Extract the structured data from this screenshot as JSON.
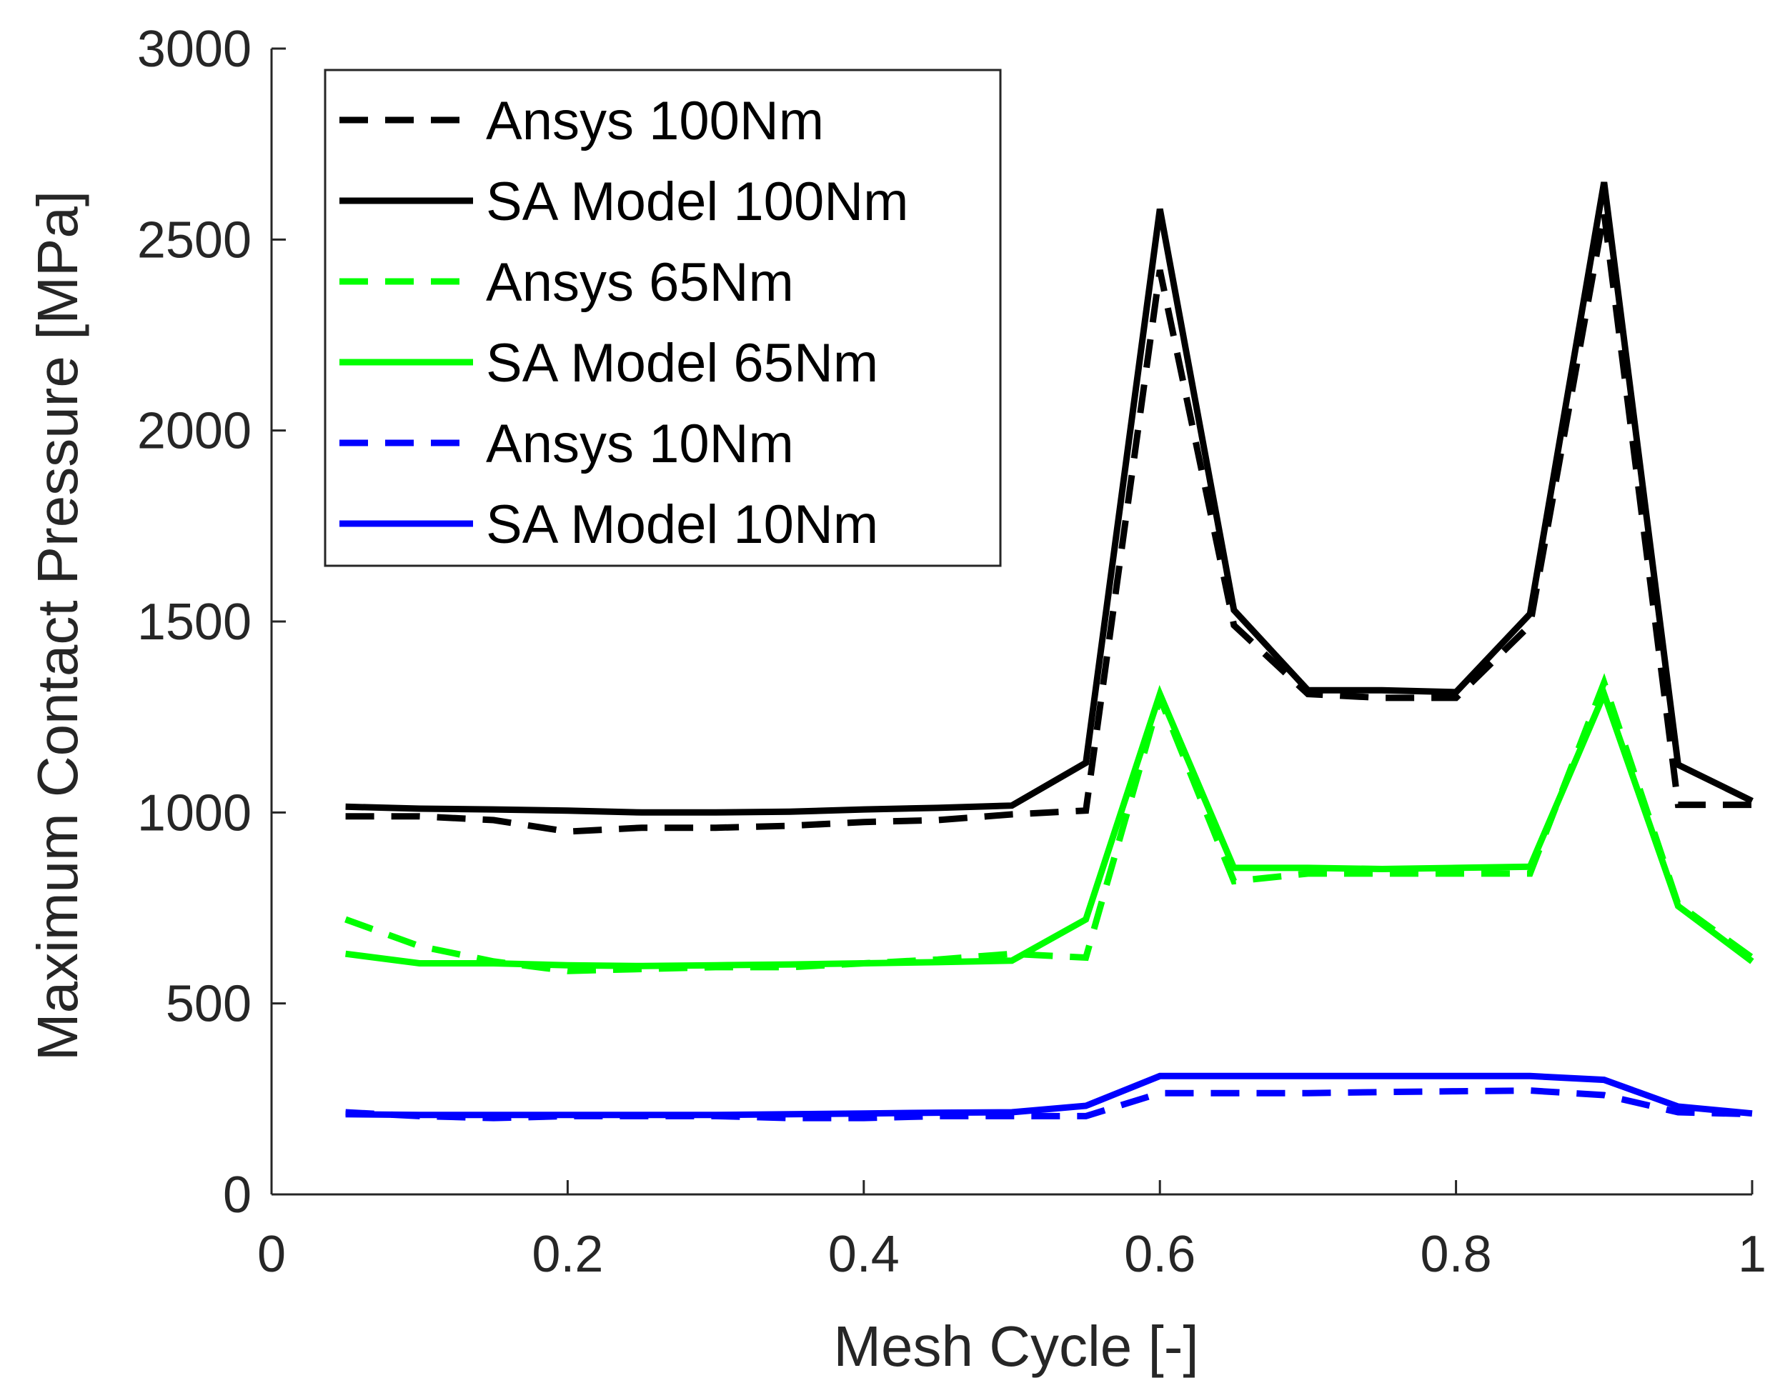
{
  "chart_data": {
    "type": "line",
    "title": "",
    "xlabel": "Mesh Cycle [-]",
    "ylabel": "Maximum Contact Pressure [MPa]",
    "xlim": [
      0,
      1
    ],
    "ylim": [
      0,
      3000
    ],
    "xticks": [
      0,
      0.2,
      0.4,
      0.6,
      0.8,
      1
    ],
    "xtick_labels": [
      "0",
      "0.2",
      "0.4",
      "0.6",
      "0.8",
      "1"
    ],
    "yticks": [
      0,
      500,
      1000,
      1500,
      2000,
      2500,
      3000
    ],
    "ytick_labels": [
      "0",
      "500",
      "1000",
      "1500",
      "2000",
      "2500",
      "3000"
    ],
    "grid": false,
    "legend_position": "top-left",
    "series": [
      {
        "name": "Ansys 100Nm",
        "color": "#000000",
        "style": "dashed",
        "x": [
          0.05,
          0.1,
          0.15,
          0.2,
          0.25,
          0.3,
          0.35,
          0.4,
          0.45,
          0.5,
          0.55,
          0.6,
          0.65,
          0.7,
          0.75,
          0.8,
          0.85,
          0.9,
          0.95,
          1.0
        ],
        "y": [
          990,
          990,
          980,
          950,
          960,
          960,
          965,
          975,
          980,
          995,
          1005,
          2420,
          1490,
          1310,
          1300,
          1300,
          1490,
          2570,
          1020,
          1020
        ]
      },
      {
        "name": "SA Model 100Nm",
        "color": "#000000",
        "style": "solid",
        "x": [
          0.05,
          0.1,
          0.15,
          0.2,
          0.25,
          0.3,
          0.35,
          0.4,
          0.45,
          0.5,
          0.55,
          0.6,
          0.65,
          0.7,
          0.75,
          0.8,
          0.85,
          0.9,
          0.95,
          1.0
        ],
        "y": [
          1015,
          1010,
          1008,
          1005,
          1000,
          1000,
          1002,
          1008,
          1012,
          1018,
          1130,
          2580,
          1530,
          1320,
          1320,
          1315,
          1520,
          2650,
          1125,
          1030
        ]
      },
      {
        "name": "Ansys 65Nm",
        "color": "#00ff00",
        "style": "dashed",
        "x": [
          0.05,
          0.1,
          0.15,
          0.2,
          0.25,
          0.3,
          0.35,
          0.4,
          0.45,
          0.5,
          0.55,
          0.6,
          0.65,
          0.7,
          0.75,
          0.8,
          0.85,
          0.9,
          0.95,
          1.0
        ],
        "y": [
          720,
          650,
          610,
          585,
          590,
          595,
          595,
          605,
          615,
          630,
          620,
          1300,
          820,
          840,
          840,
          840,
          840,
          1340,
          760,
          620
        ]
      },
      {
        "name": "SA Model 65Nm",
        "color": "#00ff00",
        "style": "solid",
        "x": [
          0.05,
          0.1,
          0.15,
          0.2,
          0.25,
          0.3,
          0.35,
          0.4,
          0.45,
          0.5,
          0.55,
          0.6,
          0.65,
          0.7,
          0.75,
          0.8,
          0.85,
          0.9,
          0.95,
          1.0
        ],
        "y": [
          630,
          605,
          605,
          600,
          598,
          600,
          602,
          605,
          608,
          612,
          720,
          1310,
          855,
          855,
          852,
          855,
          858,
          1310,
          755,
          610
        ]
      },
      {
        "name": "Ansys 10Nm",
        "color": "#0000ff",
        "style": "dashed",
        "x": [
          0.05,
          0.1,
          0.15,
          0.2,
          0.25,
          0.3,
          0.35,
          0.4,
          0.45,
          0.5,
          0.55,
          0.6,
          0.65,
          0.7,
          0.75,
          0.8,
          0.85,
          0.9,
          0.95,
          1.0
        ],
        "y": [
          215,
          205,
          200,
          205,
          205,
          205,
          200,
          200,
          205,
          205,
          205,
          265,
          265,
          265,
          268,
          270,
          272,
          260,
          215,
          210
        ]
      },
      {
        "name": "SA Model 10Nm",
        "color": "#0000ff",
        "style": "solid",
        "x": [
          0.05,
          0.1,
          0.15,
          0.2,
          0.25,
          0.3,
          0.35,
          0.4,
          0.45,
          0.5,
          0.55,
          0.6,
          0.65,
          0.7,
          0.75,
          0.8,
          0.85,
          0.9,
          0.95,
          1.0
        ],
        "y": [
          210,
          208,
          208,
          208,
          208,
          208,
          210,
          212,
          214,
          215,
          232,
          310,
          310,
          310,
          310,
          310,
          310,
          300,
          230,
          212
        ]
      }
    ]
  }
}
